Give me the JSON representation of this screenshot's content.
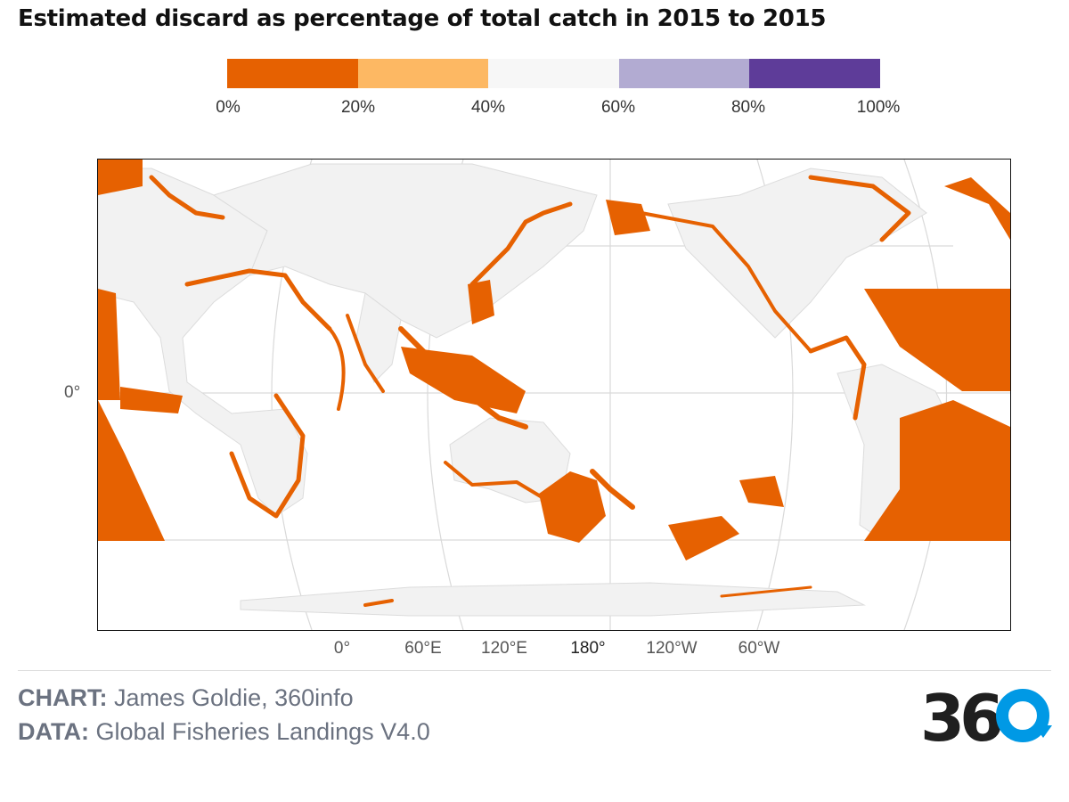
{
  "title": "Estimated discard as percentage of total catch in 2015 to 2015",
  "legend": {
    "colors": [
      "#e66101",
      "#fdb863",
      "#f7f7f7",
      "#b2abd2",
      "#5e3c99"
    ],
    "ticks": [
      "0%",
      "20%",
      "40%",
      "60%",
      "80%",
      "100%"
    ]
  },
  "map": {
    "land_color": "#f2f2f2",
    "discard_color": "#e66101",
    "graticule_color": "#d9d9d9",
    "lon_labels": [
      "0°",
      "60°E",
      "120°E",
      "180°",
      "120°W",
      "60°W"
    ],
    "lat_labels": [
      "0°"
    ]
  },
  "credits": {
    "chart_key": "CHART:",
    "chart_value": "James Goldie, 360info",
    "data_key": "DATA:",
    "data_value": "Global Fisheries Landings V4.0"
  },
  "logo": {
    "text": "36",
    "icon": "zero-refresh-icon",
    "accent_color": "#0099e5"
  }
}
